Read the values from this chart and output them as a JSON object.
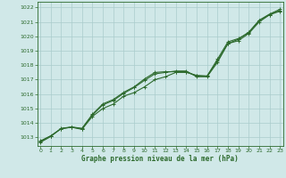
{
  "x": [
    0,
    1,
    2,
    3,
    4,
    5,
    6,
    7,
    8,
    9,
    10,
    11,
    12,
    13,
    14,
    15,
    16,
    17,
    18,
    19,
    20,
    21,
    22,
    23
  ],
  "line1": [
    1012.7,
    1013.1,
    1013.6,
    1013.7,
    1013.55,
    1014.45,
    1015.0,
    1015.3,
    1015.85,
    1016.1,
    1016.5,
    1017.0,
    1017.2,
    1017.5,
    1017.5,
    1017.3,
    1017.25,
    1018.3,
    1019.5,
    1019.7,
    1020.2,
    1021.0,
    1021.5,
    1021.8
  ],
  "line2": [
    1012.75,
    1013.1,
    1013.6,
    1013.7,
    1013.6,
    1014.55,
    1015.25,
    1015.55,
    1016.05,
    1016.45,
    1016.95,
    1017.4,
    1017.5,
    1017.6,
    1017.6,
    1017.2,
    1017.2,
    1018.2,
    1019.5,
    1019.8,
    1020.3,
    1021.1,
    1021.5,
    1021.75
  ],
  "line3": [
    1012.65,
    1013.05,
    1013.62,
    1013.72,
    1013.62,
    1014.6,
    1015.32,
    1015.62,
    1016.12,
    1016.5,
    1017.05,
    1017.5,
    1017.55,
    1017.55,
    1017.55,
    1017.25,
    1017.25,
    1018.42,
    1019.62,
    1019.85,
    1020.25,
    1021.12,
    1021.55,
    1021.88
  ],
  "line_color": "#2d6a2d",
  "bg_color": "#d0e8e8",
  "grid_color": "#aacccc",
  "title": "Graphe pression niveau de la mer (hPa)",
  "ylim_min": 1012.4,
  "ylim_max": 1022.4,
  "yticks": [
    1013,
    1014,
    1015,
    1016,
    1017,
    1018,
    1019,
    1020,
    1021,
    1022
  ],
  "xticks": [
    0,
    1,
    2,
    3,
    4,
    5,
    6,
    7,
    8,
    9,
    10,
    11,
    12,
    13,
    14,
    15,
    16,
    17,
    18,
    19,
    20,
    21,
    22,
    23
  ],
  "marker_size": 1.8,
  "line_width": 0.8
}
